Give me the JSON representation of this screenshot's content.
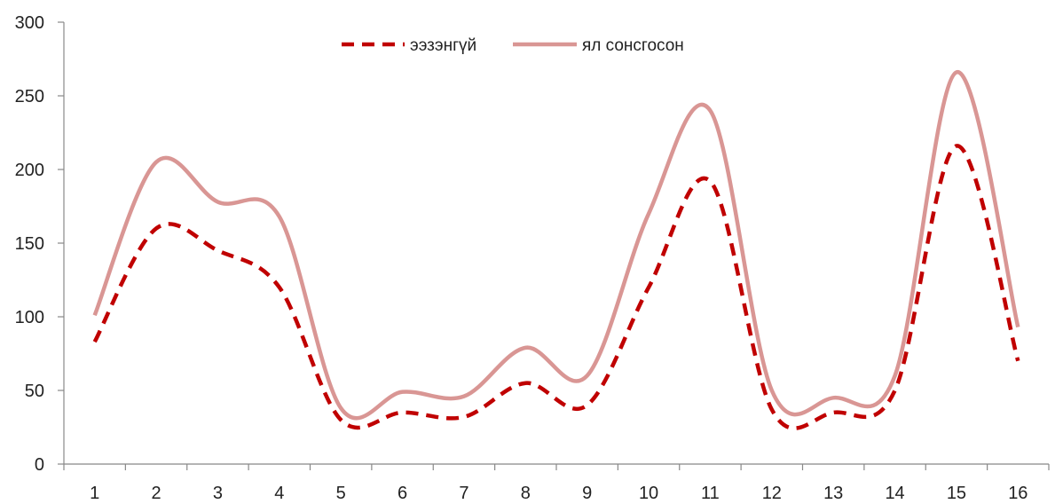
{
  "chart_data": {
    "type": "line",
    "title": "",
    "xlabel": "",
    "ylabel": "",
    "categories": [
      "1",
      "2",
      "3",
      "4",
      "5",
      "6",
      "7",
      "8",
      "9",
      "10",
      "11",
      "12",
      "13",
      "14",
      "15",
      "16"
    ],
    "ylim": [
      0,
      300
    ],
    "yticks": [
      "0",
      "50",
      "100",
      "150",
      "200",
      "250",
      "300"
    ],
    "grid": false,
    "legend_position": "top-center",
    "series": [
      {
        "name": "ээзэнгүй",
        "color": "#c00000",
        "dash": "dashed",
        "values": [
          83,
          160,
          145,
          120,
          30,
          35,
          32,
          55,
          40,
          120,
          192,
          37,
          35,
          50,
          216,
          70
        ]
      },
      {
        "name": "ял сонсгосон",
        "color": "#d99694",
        "dash": "solid",
        "values": [
          101,
          205,
          178,
          168,
          38,
          49,
          46,
          79,
          60,
          170,
          240,
          50,
          45,
          60,
          266,
          93
        ]
      }
    ]
  }
}
